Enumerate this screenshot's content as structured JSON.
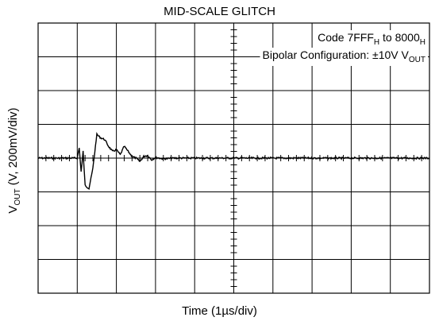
{
  "chart_data": {
    "type": "line",
    "title": "MID-SCALE GLITCH",
    "ylabel": {
      "main": "V",
      "sub": "OUT",
      "rest": " (V, 200mV/div)"
    },
    "xlabel": "Time (1µs/div)",
    "annotations": [
      {
        "parts": [
          {
            "t": "Code 7FFF"
          },
          {
            "t": "H",
            "sub": true
          },
          {
            "t": " to 8000"
          },
          {
            "t": "H",
            "sub": true
          }
        ]
      },
      {
        "parts": [
          {
            "t": "Bipolar Configuration: ±10V V"
          },
          {
            "t": "OUT",
            "sub": true
          }
        ]
      }
    ],
    "x_divisions": 10,
    "y_divisions": 8,
    "grid": true,
    "xlim": [
      0,
      10
    ],
    "ylim": [
      -4,
      4
    ],
    "series": [
      {
        "x": [
          0,
          1.0,
          1.05,
          1.1,
          1.15,
          1.2,
          1.3,
          1.4,
          1.5,
          1.6,
          1.7,
          1.8,
          1.9,
          2.0,
          2.1,
          2.2,
          2.3,
          2.4,
          2.5,
          2.6,
          2.7,
          2.8,
          2.9,
          3.0,
          3.2,
          3.5,
          10
        ],
        "values": [
          0,
          0,
          0.3,
          -0.4,
          0.2,
          -0.8,
          -0.9,
          -0.3,
          0.7,
          0.6,
          0.55,
          0.35,
          0.2,
          0.25,
          0.1,
          0.35,
          0.2,
          0.05,
          0.0,
          -0.1,
          0.05,
          0.08,
          -0.05,
          0.02,
          -0.02,
          0.0,
          0
        ]
      }
    ]
  }
}
